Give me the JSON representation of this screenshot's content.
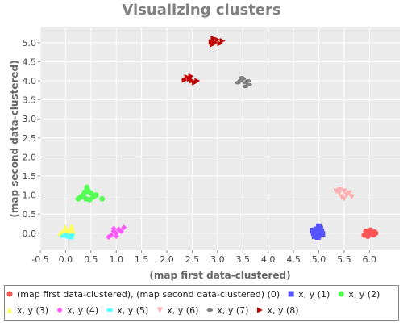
{
  "chart_data": {
    "type": "scatter",
    "title": "Visualizing clusters",
    "xlabel": "(map first data-clustered)",
    "ylabel": "(map second data-clustered)",
    "xlim": [
      -0.5,
      6.6
    ],
    "ylim": [
      -0.45,
      5.4
    ],
    "xticks": [
      "-0.5",
      "0.0",
      "0.5",
      "1.0",
      "1.5",
      "2.0",
      "2.5",
      "3.0",
      "3.5",
      "4.0",
      "4.5",
      "5.0",
      "5.5",
      "6.0"
    ],
    "yticks": [
      "0.0",
      "0.5",
      "1.0",
      "1.5",
      "2.0",
      "2.5",
      "3.0",
      "3.5",
      "4.0",
      "4.5",
      "5.0"
    ],
    "grid": true,
    "legend_position": "bottom",
    "series": [
      {
        "name": "(map first data-clustered), (map second data-clustered) (0)",
        "color": "#ff5555",
        "marker": "circle",
        "points": [
          [
            5.95,
            0.02
          ],
          [
            6.0,
            0.06
          ],
          [
            6.05,
            -0.02
          ],
          [
            5.9,
            -0.05
          ],
          [
            6.1,
            0.03
          ],
          [
            6.02,
            0.08
          ],
          [
            5.97,
            -0.08
          ],
          [
            6.08,
            -0.04
          ],
          [
            5.93,
            0.05
          ],
          [
            6.12,
            0.0
          ]
        ]
      },
      {
        "name": "x, y (1)",
        "color": "#5555ff",
        "marker": "square",
        "points": [
          [
            4.95,
            0.1
          ],
          [
            5.0,
            -0.05
          ],
          [
            4.9,
            0.0
          ],
          [
            5.05,
            0.05
          ],
          [
            4.98,
            -0.1
          ],
          [
            5.03,
            0.12
          ],
          [
            4.92,
            -0.08
          ],
          [
            5.07,
            -0.02
          ],
          [
            4.88,
            0.07
          ],
          [
            5.0,
            0.18
          ]
        ]
      },
      {
        "name": "x, y (2)",
        "color": "#55ff55",
        "marker": "circle",
        "points": [
          [
            0.35,
            1.0
          ],
          [
            0.45,
            1.1
          ],
          [
            0.4,
            0.9
          ],
          [
            0.5,
            1.05
          ],
          [
            0.3,
            0.95
          ],
          [
            0.55,
            0.95
          ],
          [
            0.42,
            1.2
          ],
          [
            0.25,
            0.9
          ],
          [
            0.6,
            1.0
          ],
          [
            0.72,
            0.9
          ],
          [
            0.48,
            0.88
          ],
          [
            0.38,
            1.08
          ]
        ]
      },
      {
        "name": "x, y (3)",
        "color": "#ffff55",
        "marker": "triangle-up",
        "points": [
          [
            -0.05,
            0.05
          ],
          [
            0.1,
            0.1
          ],
          [
            0.0,
            0.15
          ],
          [
            0.15,
            0.05
          ],
          [
            0.05,
            0.0
          ],
          [
            -0.1,
            0.0
          ],
          [
            0.12,
            0.18
          ],
          [
            0.03,
            0.08
          ]
        ]
      },
      {
        "name": "x, y (4)",
        "color": "#ff55ff",
        "marker": "diamond",
        "points": [
          [
            0.95,
            0.05
          ],
          [
            1.05,
            0.1
          ],
          [
            1.0,
            0.0
          ],
          [
            0.9,
            -0.05
          ],
          [
            1.15,
            0.15
          ],
          [
            0.85,
            -0.1
          ],
          [
            1.1,
            0.05
          ],
          [
            0.95,
            0.12
          ],
          [
            1.0,
            -0.08
          ]
        ]
      },
      {
        "name": "x, y (5)",
        "color": "#55ffff",
        "marker": "rect",
        "points": [
          [
            -0.05,
            -0.08
          ],
          [
            0.05,
            -0.1
          ],
          [
            0.12,
            -0.05
          ],
          [
            0.0,
            -0.03
          ],
          [
            0.1,
            -0.12
          ]
        ]
      },
      {
        "name": "x, y (6)",
        "color": "#ffafaf",
        "marker": "triangle-down",
        "points": [
          [
            5.4,
            1.05
          ],
          [
            5.5,
            1.1
          ],
          [
            5.45,
            0.95
          ],
          [
            5.55,
            1.0
          ],
          [
            5.6,
            1.05
          ],
          [
            5.35,
            1.1
          ],
          [
            5.5,
            0.9
          ],
          [
            5.65,
            0.95
          ],
          [
            5.42,
            1.15
          ]
        ]
      },
      {
        "name": "x, y (7)",
        "color": "#808080",
        "marker": "ellipse",
        "points": [
          [
            3.45,
            4.0
          ],
          [
            3.55,
            3.95
          ],
          [
            3.5,
            4.05
          ],
          [
            3.4,
            3.95
          ],
          [
            3.6,
            4.0
          ],
          [
            3.55,
            3.85
          ],
          [
            3.48,
            4.08
          ],
          [
            3.62,
            3.9
          ]
        ]
      },
      {
        "name": "x, y (8)",
        "color": "#c00000",
        "marker": "triangle-right",
        "points": [
          [
            2.95,
            5.0
          ],
          [
            3.0,
            5.08
          ],
          [
            2.9,
            4.95
          ],
          [
            3.05,
            4.98
          ],
          [
            2.92,
            5.12
          ],
          [
            3.1,
            5.05
          ],
          [
            2.88,
            5.02
          ],
          [
            2.45,
            4.05
          ],
          [
            2.5,
            4.0
          ],
          [
            2.4,
            4.1
          ],
          [
            2.55,
            3.95
          ],
          [
            2.35,
            4.02
          ],
          [
            2.48,
            4.12
          ],
          [
            2.6,
            4.0
          ]
        ]
      }
    ]
  }
}
